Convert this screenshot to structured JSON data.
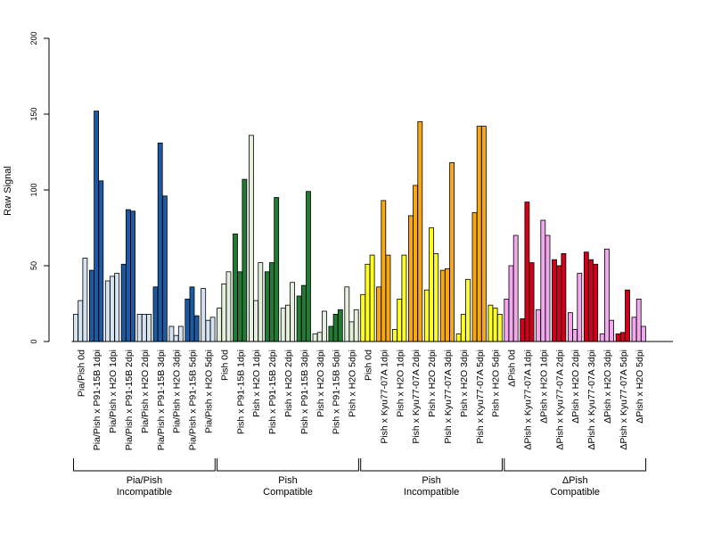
{
  "chart_data": {
    "type": "bar",
    "ylabel": "Raw Signal",
    "ylim": [
      0,
      200
    ],
    "yticks": [
      0,
      50,
      100,
      150,
      200
    ],
    "grid": false,
    "colors": {
      "pia_light": "#d6e3f0",
      "pia_dark": "#1d5aa3",
      "pish_c_light": "#e4f0dc",
      "pish_c_dark": "#237a33",
      "pish_i_yellow": "#ffff22",
      "pish_i_orange": "#f7a812",
      "dpish_pink": "#f2a8ec",
      "dpish_red": "#d3001b"
    },
    "categories": [
      {
        "label": "Pia/Pish 0d",
        "color": "pia_light",
        "values": [
          18,
          27,
          55
        ]
      },
      {
        "label": "Pia/Pish x P91-15B 1dpi",
        "color": "pia_dark",
        "values": [
          47,
          152,
          106
        ]
      },
      {
        "label": "Pia/Pish x H2O 1dpi",
        "color": "pia_light",
        "values": [
          40,
          43,
          45
        ]
      },
      {
        "label": "Pia/Pish x P91-15B 2dpi",
        "color": "pia_dark",
        "values": [
          51,
          87,
          86
        ]
      },
      {
        "label": "Pia/Pish x H2O 2dpi",
        "color": "pia_light",
        "values": [
          18,
          18,
          18
        ]
      },
      {
        "label": "Pia/Pish x P91-15B 3dpi",
        "color": "pia_dark",
        "values": [
          36,
          131,
          96
        ]
      },
      {
        "label": "Pia/Pish x H2O 3dpi",
        "color": "pia_light",
        "values": [
          10,
          4,
          10
        ]
      },
      {
        "label": "Pia/Pish x P91-15B 5dpi",
        "color": "pia_dark",
        "values": [
          28,
          36,
          17
        ]
      },
      {
        "label": "Pia/Pish x H2O 5dpi",
        "color": "pia_light",
        "values": [
          35,
          14,
          16
        ]
      },
      {
        "label": "Pish 0d",
        "color": "pish_c_light",
        "values": [
          22,
          38,
          46
        ]
      },
      {
        "label": "Pish x P91-15B 1dpi",
        "color": "pish_c_dark",
        "values": [
          71,
          46,
          107
        ]
      },
      {
        "label": "Pish x H2O 1dpi",
        "color": "pish_c_light",
        "values": [
          136,
          27,
          52
        ]
      },
      {
        "label": "Pish x P91-15B 2dpi",
        "color": "pish_c_dark",
        "values": [
          46,
          52,
          95
        ]
      },
      {
        "label": "Pish x H2O 2dpi",
        "color": "pish_c_light",
        "values": [
          22,
          24,
          39
        ]
      },
      {
        "label": "Pish x P91-15B 3dpi",
        "color": "pish_c_dark",
        "values": [
          30,
          37,
          99
        ]
      },
      {
        "label": "Pish x H2O 3dpi",
        "color": "pish_c_light",
        "values": [
          5,
          6,
          20
        ]
      },
      {
        "label": "Pish x P91-15B 5dpi",
        "color": "pish_c_dark",
        "values": [
          10,
          18,
          21
        ]
      },
      {
        "label": "Pish x H2O 5dpi",
        "color": "pish_c_light",
        "values": [
          36,
          13,
          21
        ]
      },
      {
        "label": "Pish 0d",
        "color": "pish_i_yellow",
        "values": [
          31,
          51,
          57
        ]
      },
      {
        "label": "Pish x Kyu77-07A 1dpi",
        "color": "pish_i_orange",
        "values": [
          36,
          93,
          57
        ]
      },
      {
        "label": "Pish x H2O 1dpi",
        "color": "pish_i_yellow",
        "values": [
          8,
          28,
          57
        ]
      },
      {
        "label": "Pish x Kyu77-07A 2dpi",
        "color": "pish_i_orange",
        "values": [
          83,
          103,
          145
        ]
      },
      {
        "label": "Pish x H2O 2dpi",
        "color": "pish_i_yellow",
        "values": [
          34,
          75,
          58
        ]
      },
      {
        "label": "Pish x Kyu77-07A 3dpi",
        "color": "pish_i_orange",
        "values": [
          47,
          48,
          118
        ]
      },
      {
        "label": "Pish x H2O 3dpi",
        "color": "pish_i_yellow",
        "values": [
          5,
          18,
          41
        ]
      },
      {
        "label": "Pish x Kyu77-07A 5dpi",
        "color": "pish_i_orange",
        "values": [
          85,
          142,
          142
        ]
      },
      {
        "label": "Pish x H2O 5dpi",
        "color": "pish_i_yellow",
        "values": [
          24,
          22,
          18
        ]
      },
      {
        "label": "ΔPish 0d",
        "color": "dpish_pink",
        "values": [
          28,
          50,
          70
        ]
      },
      {
        "label": "ΔPish x Kyu77-07A 1dpi",
        "color": "dpish_red",
        "values": [
          15,
          92,
          52
        ]
      },
      {
        "label": "ΔPish x H2O 1dpi",
        "color": "dpish_pink",
        "values": [
          21,
          80,
          70
        ]
      },
      {
        "label": "ΔPish x Kyu77-07A 2dpi",
        "color": "dpish_red",
        "values": [
          54,
          50,
          58
        ]
      },
      {
        "label": "ΔPish x H2O 2dpi",
        "color": "dpish_pink",
        "values": [
          19,
          8,
          45
        ]
      },
      {
        "label": "ΔPish x Kyu77-07A 3dpi",
        "color": "dpish_red",
        "values": [
          59,
          54,
          51
        ]
      },
      {
        "label": "ΔPish x H2O 3dpi",
        "color": "dpish_pink",
        "values": [
          5,
          61,
          14
        ]
      },
      {
        "label": "ΔPish x Kyu77-07A 5dpi",
        "color": "dpish_red",
        "values": [
          5,
          6,
          34
        ]
      },
      {
        "label": "ΔPish x H2O 5dpi",
        "color": "dpish_pink",
        "values": [
          16,
          28,
          10
        ]
      }
    ],
    "groups": [
      {
        "line1": "Pia/Pish",
        "line2": "Incompatible",
        "count": 9
      },
      {
        "line1": "Pish",
        "line2": "Compatible",
        "count": 9
      },
      {
        "line1": "Pish",
        "line2": "Incompatible",
        "count": 9
      },
      {
        "line1": "ΔPish",
        "line2": "Compatible",
        "count": 9
      }
    ]
  }
}
